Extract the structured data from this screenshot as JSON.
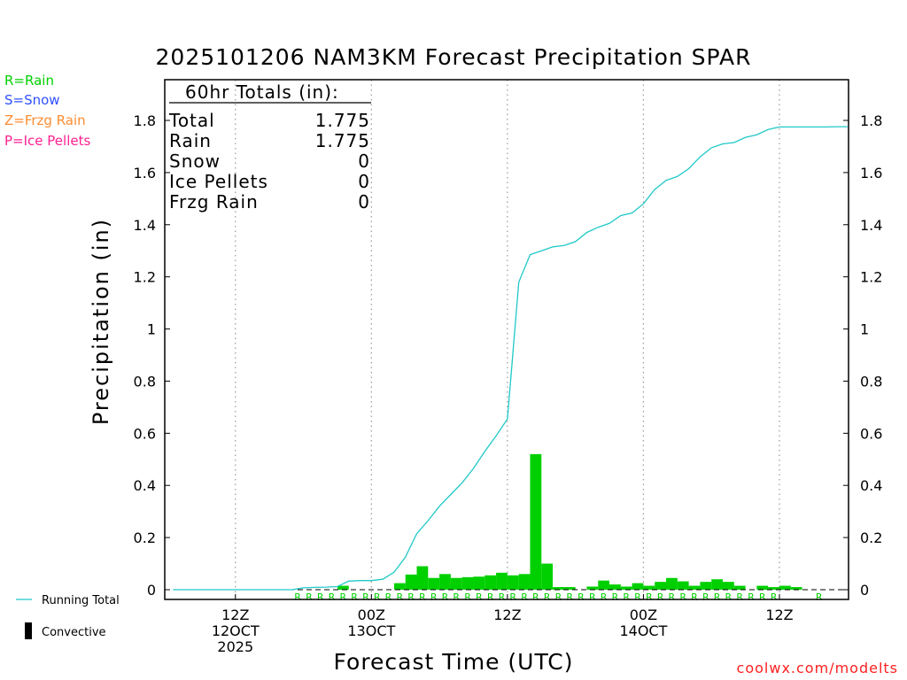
{
  "chart_data": {
    "type": "bar",
    "title": "2025101206 NAM3KM Forecast Precipitation SPAR",
    "ylabel": "Precipitation (in)",
    "xlabel": "Forecast Time (UTC)",
    "ylim": [
      -0.03,
      1.95
    ],
    "yticks": [
      0,
      0.2,
      0.4,
      0.6,
      0.8,
      1,
      1.2,
      1.4,
      1.6,
      1.8
    ],
    "ytick_labels": [
      "0",
      "0.2",
      "0.4",
      "0.6",
      "0.8",
      "1",
      "1.2",
      "1.4",
      "1.6",
      "1.8"
    ],
    "xlim_hours": [
      0,
      60
    ],
    "xticks": [
      {
        "hour": 6,
        "labels": [
          "12Z",
          "12OCT",
          "2025"
        ]
      },
      {
        "hour": 18,
        "labels": [
          "00Z",
          "13OCT"
        ]
      },
      {
        "hour": 30,
        "labels": [
          "12Z"
        ]
      },
      {
        "hour": 42,
        "labels": [
          "00Z",
          "14OCT"
        ]
      },
      {
        "hour": 54,
        "labels": [
          "12Z"
        ]
      }
    ],
    "series": [
      {
        "name": "Hourly Rain",
        "color": "#00d000",
        "hours": [
          1,
          2,
          3,
          4,
          5,
          6,
          7,
          8,
          9,
          10,
          11,
          12,
          13,
          14,
          15,
          16,
          17,
          18,
          19,
          20,
          21,
          22,
          23,
          24,
          25,
          26,
          27,
          28,
          29,
          30,
          31,
          32,
          33,
          34,
          35,
          36,
          37,
          38,
          39,
          40,
          41,
          42,
          43,
          44,
          45,
          46,
          47,
          48,
          49,
          50,
          51,
          52,
          53,
          54,
          55,
          56,
          57,
          58,
          59,
          60
        ],
        "values": [
          0,
          0,
          0,
          0,
          0,
          0,
          0,
          0,
          0,
          0,
          0,
          0,
          0,
          0,
          0,
          0.015,
          0,
          0,
          0,
          0,
          0.025,
          0.058,
          0.09,
          0.045,
          0.06,
          0.045,
          0.048,
          0.05,
          0.055,
          0.065,
          0.055,
          0.06,
          0.52,
          0.1,
          0.01,
          0.01,
          0,
          0.012,
          0.035,
          0.02,
          0.012,
          0.025,
          0.015,
          0.03,
          0.045,
          0.032,
          0.015,
          0.03,
          0.04,
          0.03,
          0.015,
          0,
          0.015,
          0.01,
          0.015,
          0.01,
          0,
          0,
          0,
          0
        ]
      },
      {
        "name": "Running Total",
        "color": "#20c8c8",
        "hours": [
          0.5,
          1,
          2,
          3,
          4,
          5,
          6,
          7,
          8,
          9,
          10,
          11,
          12,
          13,
          14,
          15,
          16,
          17,
          18,
          19,
          20,
          21,
          22,
          23,
          24,
          25,
          26,
          27,
          28,
          29,
          30,
          31,
          32,
          33,
          34,
          35,
          36,
          37,
          38,
          39,
          40,
          41,
          42,
          43,
          44,
          45,
          46,
          47,
          48,
          49,
          50,
          51,
          52,
          53,
          54,
          55,
          56,
          57,
          58,
          59,
          60
        ],
        "values": [
          0,
          0,
          0,
          0,
          0,
          0,
          0,
          0,
          0,
          0,
          0,
          0,
          0.007,
          0.009,
          0.01,
          0.012,
          0.033,
          0.035,
          0.035,
          0.04,
          0.067,
          0.125,
          0.215,
          0.265,
          0.32,
          0.365,
          0.41,
          0.465,
          0.53,
          0.59,
          0.655,
          1.18,
          1.285,
          1.3,
          1.315,
          1.32,
          1.335,
          1.37,
          1.39,
          1.405,
          1.435,
          1.445,
          1.48,
          1.535,
          1.57,
          1.585,
          1.615,
          1.66,
          1.695,
          1.71,
          1.715,
          1.735,
          1.745,
          1.765,
          1.775,
          1.775,
          1.775,
          1.775,
          1.775,
          1.776,
          1.776
        ]
      }
    ],
    "ptype_hours": [
      12,
      13,
      14,
      15,
      16,
      17,
      18,
      19,
      20,
      21,
      22,
      23,
      24,
      25,
      26,
      27,
      28,
      29,
      30,
      31,
      32,
      33,
      34,
      35,
      36,
      37,
      38,
      39,
      40,
      41,
      42,
      43,
      44,
      45,
      46,
      47,
      48,
      49,
      50,
      51,
      52,
      53,
      54,
      58
    ],
    "ptype_letter": "R"
  },
  "totals_box": {
    "header": "60hr Totals (in):",
    "rows": [
      {
        "label": "Total",
        "value": "1.775"
      },
      {
        "label": "Rain",
        "value": "1.775"
      },
      {
        "label": "Snow",
        "value": "0"
      },
      {
        "label": "Ice Pellets",
        "value": "0"
      },
      {
        "label": "Frzg Rain",
        "value": "0"
      }
    ]
  },
  "ptype_legend": {
    "rain": {
      "text": "R=Rain",
      "color": "#00d000"
    },
    "snow": {
      "text": "S=Snow",
      "color": "#3050ff"
    },
    "zr": {
      "text": "Z=Frzg Rain",
      "color": "#ff8c30"
    },
    "ip": {
      "text": "P=Ice Pellets",
      "color": "#ff2090"
    }
  },
  "bottom_legend": {
    "running_total": "Running Total",
    "convective": "Convective"
  },
  "credit": "coolwx.com/modelts"
}
